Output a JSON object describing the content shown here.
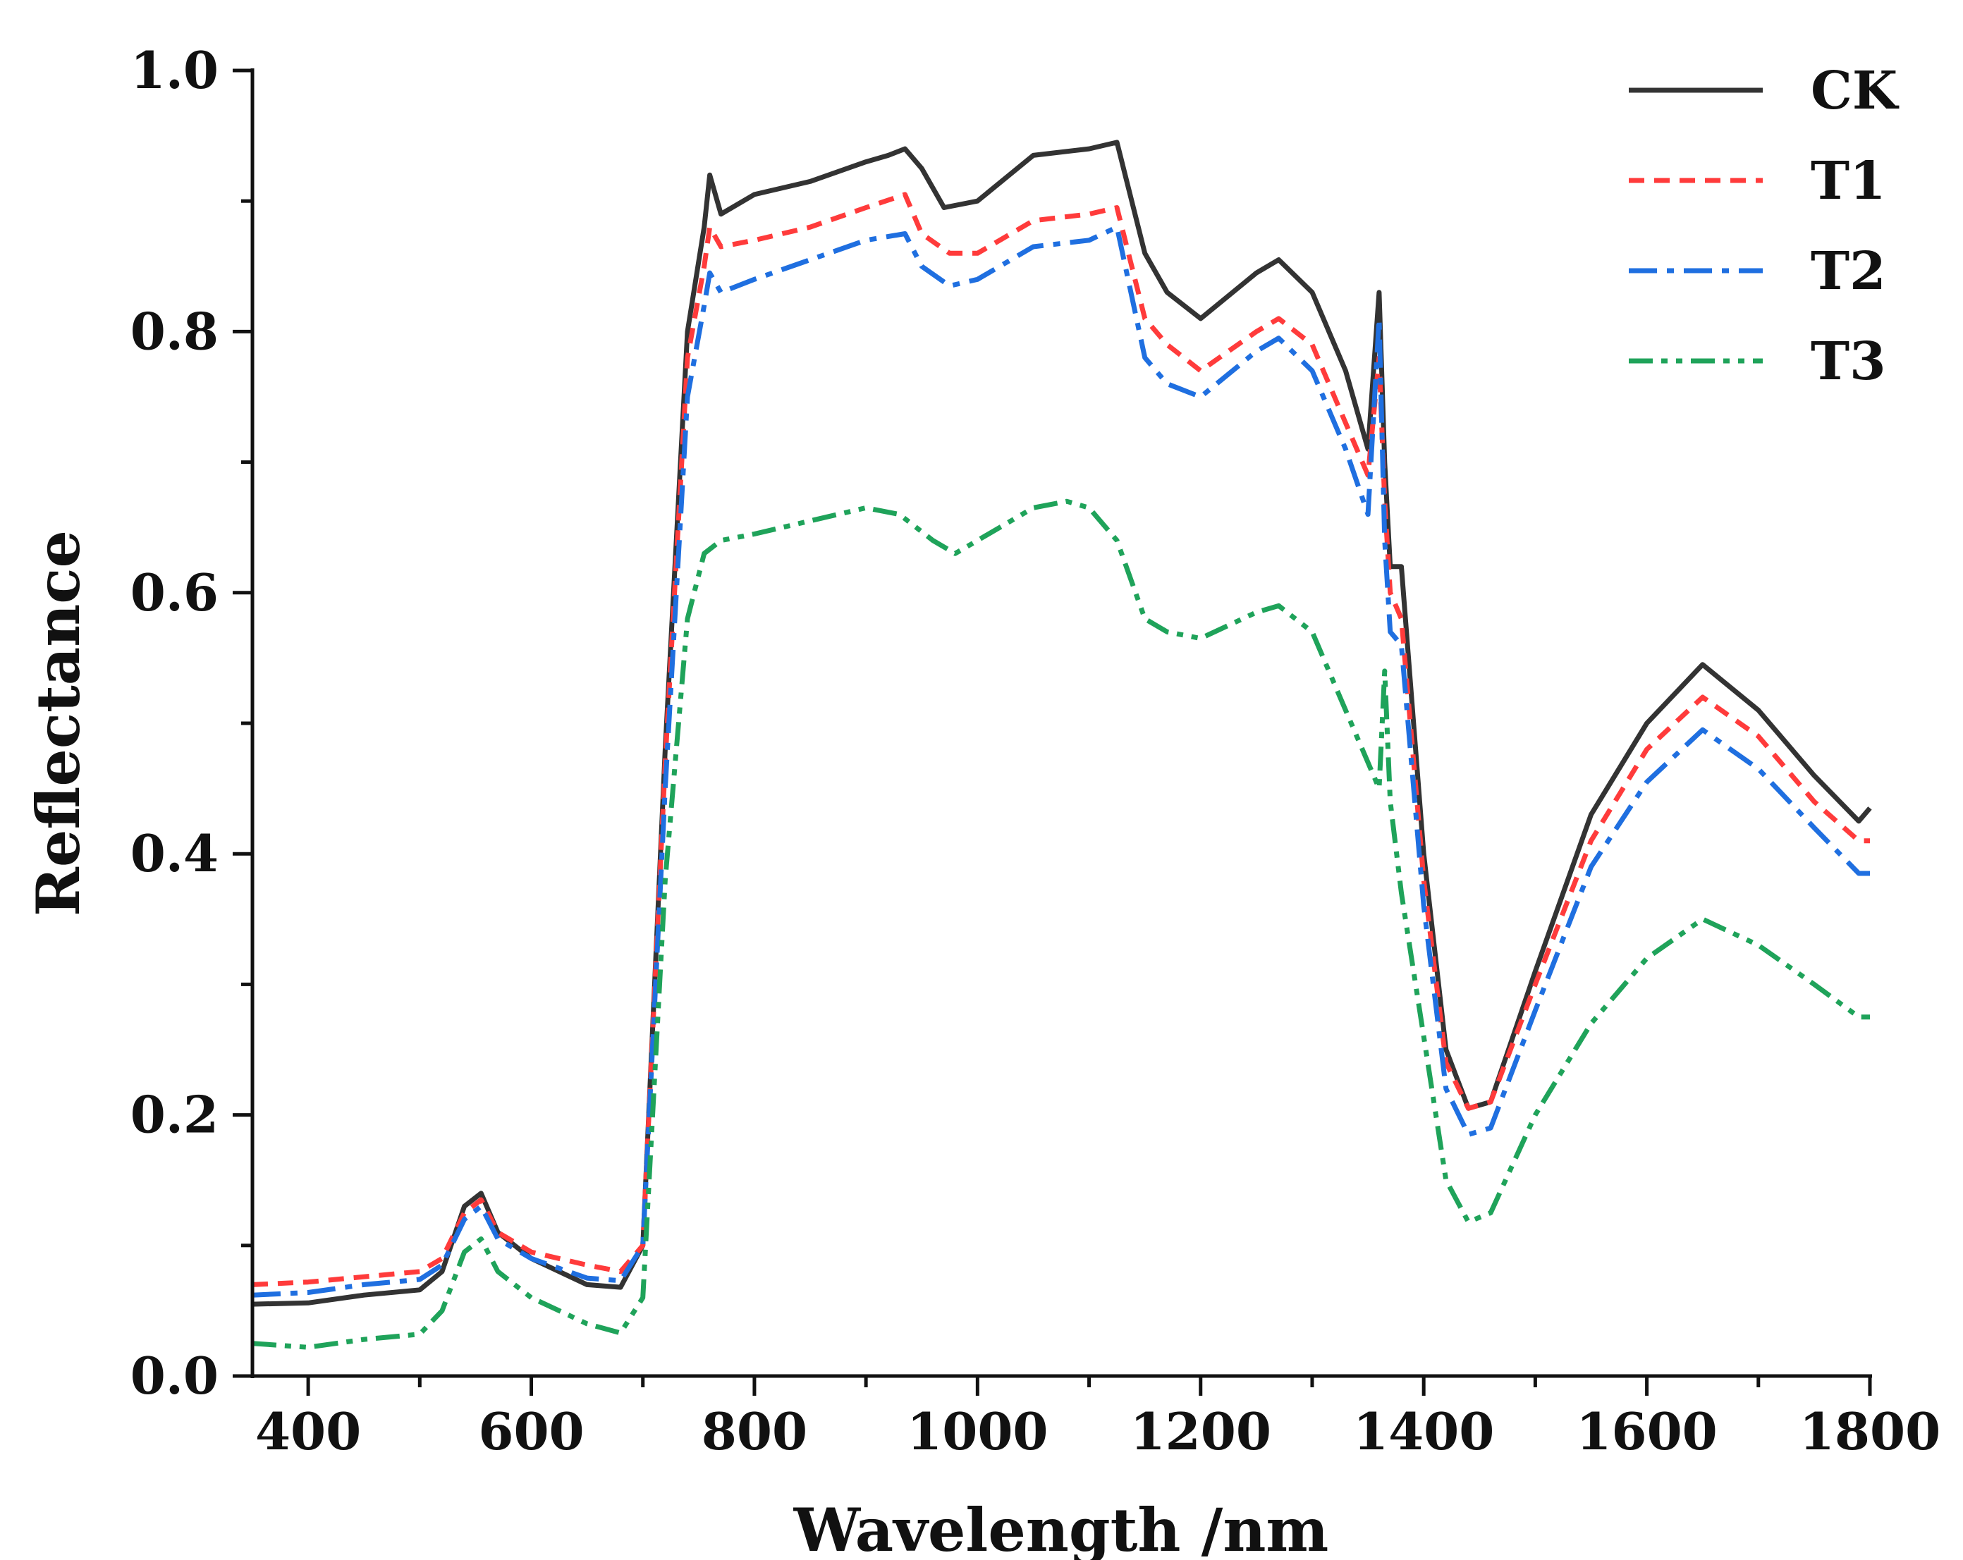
{
  "chart_data": {
    "type": "line",
    "title": "",
    "xlabel": "Wavelength /nm",
    "ylabel": "Reflectance",
    "xlim": [
      350,
      1800
    ],
    "ylim": [
      0.0,
      1.0
    ],
    "x_ticks": [
      400,
      600,
      800,
      1000,
      1200,
      1400,
      1600,
      1800
    ],
    "x_tick_labels": [
      "400",
      "600",
      "800",
      "1000",
      "1200",
      "1400",
      "1600",
      "1800"
    ],
    "y_ticks": [
      0.0,
      0.2,
      0.4,
      0.6,
      0.8,
      1.0
    ],
    "y_tick_labels": [
      "0.0",
      "0.2",
      "0.4",
      "0.6",
      "0.8",
      "1.0"
    ],
    "legend_position": "top-right",
    "grid": false,
    "series": [
      {
        "name": "CK",
        "color": "#333333",
        "dash": "solid",
        "x": [
          350,
          400,
          450,
          500,
          520,
          540,
          555,
          570,
          600,
          650,
          680,
          700,
          720,
          740,
          755,
          760,
          770,
          800,
          850,
          900,
          920,
          935,
          950,
          970,
          1000,
          1050,
          1100,
          1125,
          1150,
          1170,
          1200,
          1250,
          1270,
          1300,
          1330,
          1350,
          1360,
          1365,
          1370,
          1380,
          1400,
          1420,
          1440,
          1460,
          1500,
          1550,
          1600,
          1650,
          1700,
          1750,
          1790,
          1800
        ],
        "y": [
          0.055,
          0.056,
          0.062,
          0.066,
          0.08,
          0.13,
          0.14,
          0.11,
          0.09,
          0.07,
          0.068,
          0.1,
          0.48,
          0.8,
          0.88,
          0.92,
          0.89,
          0.905,
          0.915,
          0.93,
          0.935,
          0.94,
          0.925,
          0.895,
          0.9,
          0.935,
          0.94,
          0.945,
          0.86,
          0.83,
          0.81,
          0.845,
          0.855,
          0.83,
          0.77,
          0.71,
          0.83,
          0.7,
          0.62,
          0.62,
          0.4,
          0.25,
          0.205,
          0.21,
          0.31,
          0.43,
          0.5,
          0.545,
          0.51,
          0.46,
          0.425,
          0.435
        ]
      },
      {
        "name": "T1",
        "color": "#ff3b3b",
        "dash": "dashed",
        "x": [
          350,
          400,
          450,
          500,
          520,
          540,
          555,
          570,
          600,
          650,
          680,
          700,
          720,
          740,
          755,
          760,
          770,
          800,
          850,
          900,
          935,
          950,
          975,
          1000,
          1050,
          1100,
          1125,
          1150,
          1170,
          1200,
          1250,
          1270,
          1300,
          1330,
          1350,
          1360,
          1365,
          1370,
          1380,
          1400,
          1420,
          1440,
          1460,
          1500,
          1550,
          1600,
          1650,
          1700,
          1750,
          1790,
          1800
        ],
        "y": [
          0.07,
          0.072,
          0.076,
          0.08,
          0.09,
          0.125,
          0.135,
          0.11,
          0.095,
          0.085,
          0.08,
          0.1,
          0.47,
          0.78,
          0.85,
          0.88,
          0.865,
          0.87,
          0.88,
          0.895,
          0.905,
          0.875,
          0.86,
          0.86,
          0.885,
          0.89,
          0.895,
          0.81,
          0.79,
          0.77,
          0.8,
          0.81,
          0.79,
          0.73,
          0.69,
          0.78,
          0.67,
          0.6,
          0.58,
          0.38,
          0.24,
          0.205,
          0.21,
          0.3,
          0.41,
          0.48,
          0.52,
          0.49,
          0.44,
          0.41,
          0.41
        ]
      },
      {
        "name": "T2",
        "color": "#1f6fe0",
        "dash": "dashdot",
        "x": [
          350,
          400,
          450,
          500,
          520,
          540,
          555,
          570,
          600,
          650,
          680,
          700,
          720,
          740,
          755,
          760,
          770,
          800,
          850,
          900,
          935,
          950,
          975,
          1000,
          1050,
          1100,
          1125,
          1150,
          1170,
          1200,
          1250,
          1270,
          1300,
          1330,
          1350,
          1360,
          1365,
          1370,
          1380,
          1400,
          1420,
          1440,
          1460,
          1500,
          1550,
          1600,
          1650,
          1700,
          1750,
          1790,
          1800
        ],
        "y": [
          0.062,
          0.064,
          0.07,
          0.074,
          0.085,
          0.12,
          0.13,
          0.105,
          0.09,
          0.075,
          0.073,
          0.1,
          0.45,
          0.75,
          0.82,
          0.845,
          0.83,
          0.84,
          0.855,
          0.87,
          0.875,
          0.85,
          0.835,
          0.84,
          0.865,
          0.87,
          0.88,
          0.78,
          0.76,
          0.75,
          0.785,
          0.795,
          0.77,
          0.71,
          0.66,
          0.81,
          0.64,
          0.57,
          0.56,
          0.36,
          0.22,
          0.185,
          0.19,
          0.28,
          0.39,
          0.455,
          0.495,
          0.465,
          0.42,
          0.385,
          0.385
        ]
      },
      {
        "name": "T3",
        "color": "#1fa35a",
        "dash": "dashdotdot",
        "x": [
          350,
          400,
          450,
          500,
          520,
          540,
          555,
          570,
          600,
          650,
          680,
          700,
          720,
          740,
          755,
          770,
          800,
          850,
          900,
          930,
          960,
          980,
          1000,
          1050,
          1080,
          1100,
          1125,
          1150,
          1170,
          1200,
          1250,
          1270,
          1300,
          1330,
          1350,
          1360,
          1365,
          1370,
          1380,
          1400,
          1420,
          1440,
          1460,
          1500,
          1550,
          1600,
          1650,
          1700,
          1750,
          1790,
          1800
        ],
        "y": [
          0.025,
          0.022,
          0.028,
          0.032,
          0.05,
          0.095,
          0.105,
          0.08,
          0.06,
          0.04,
          0.033,
          0.06,
          0.38,
          0.58,
          0.63,
          0.64,
          0.645,
          0.655,
          0.665,
          0.66,
          0.64,
          0.63,
          0.64,
          0.665,
          0.67,
          0.665,
          0.64,
          0.58,
          0.57,
          0.565,
          0.585,
          0.59,
          0.57,
          0.51,
          0.47,
          0.45,
          0.54,
          0.44,
          0.37,
          0.26,
          0.15,
          0.118,
          0.125,
          0.2,
          0.27,
          0.32,
          0.35,
          0.33,
          0.3,
          0.275,
          0.275
        ]
      }
    ]
  }
}
